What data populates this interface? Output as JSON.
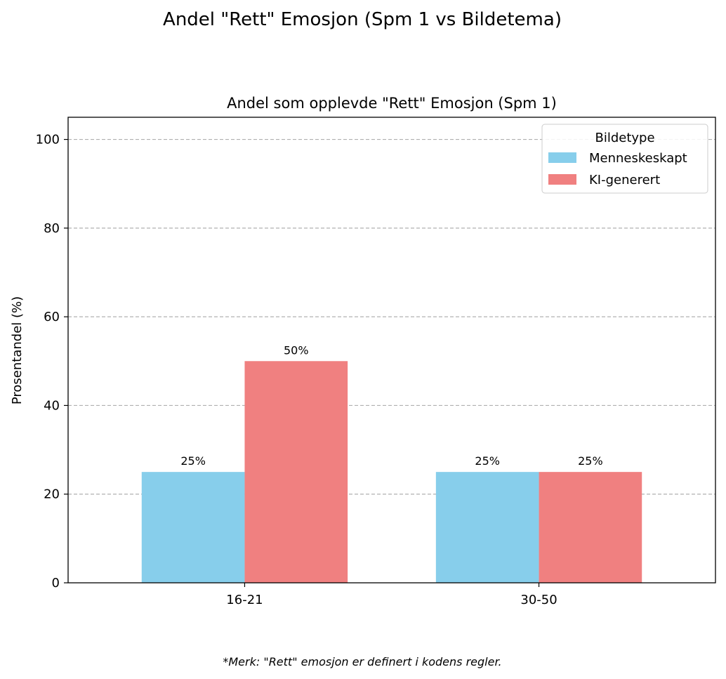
{
  "suptitle": "Andel \"Rett\" Emosjon (Spm 1 vs Bildetema)",
  "footnote": "*Merk: \"Rett\" emosjon er definert i kodens regler.",
  "chart_data": {
    "type": "bar",
    "title": "Andel som opplevde \"Rett\" Emosjon (Spm 1)",
    "xlabel": "",
    "ylabel": "Prosentandel (%)",
    "categories": [
      "16-21",
      "30-50"
    ],
    "series": [
      {
        "name": "Menneskeskapt",
        "values": [
          25,
          25
        ],
        "labels": [
          "25%",
          "25%"
        ],
        "color": "#87CEEB"
      },
      {
        "name": "KI-generert",
        "values": [
          50,
          25
        ],
        "labels": [
          "50%",
          "25%"
        ],
        "color": "#F08080"
      }
    ],
    "ylim": [
      0,
      105
    ],
    "yticks": [
      0,
      20,
      40,
      60,
      80,
      100
    ],
    "grid": "y-dashed",
    "legend": {
      "title": "Bildetype",
      "placement": "top-right"
    }
  }
}
